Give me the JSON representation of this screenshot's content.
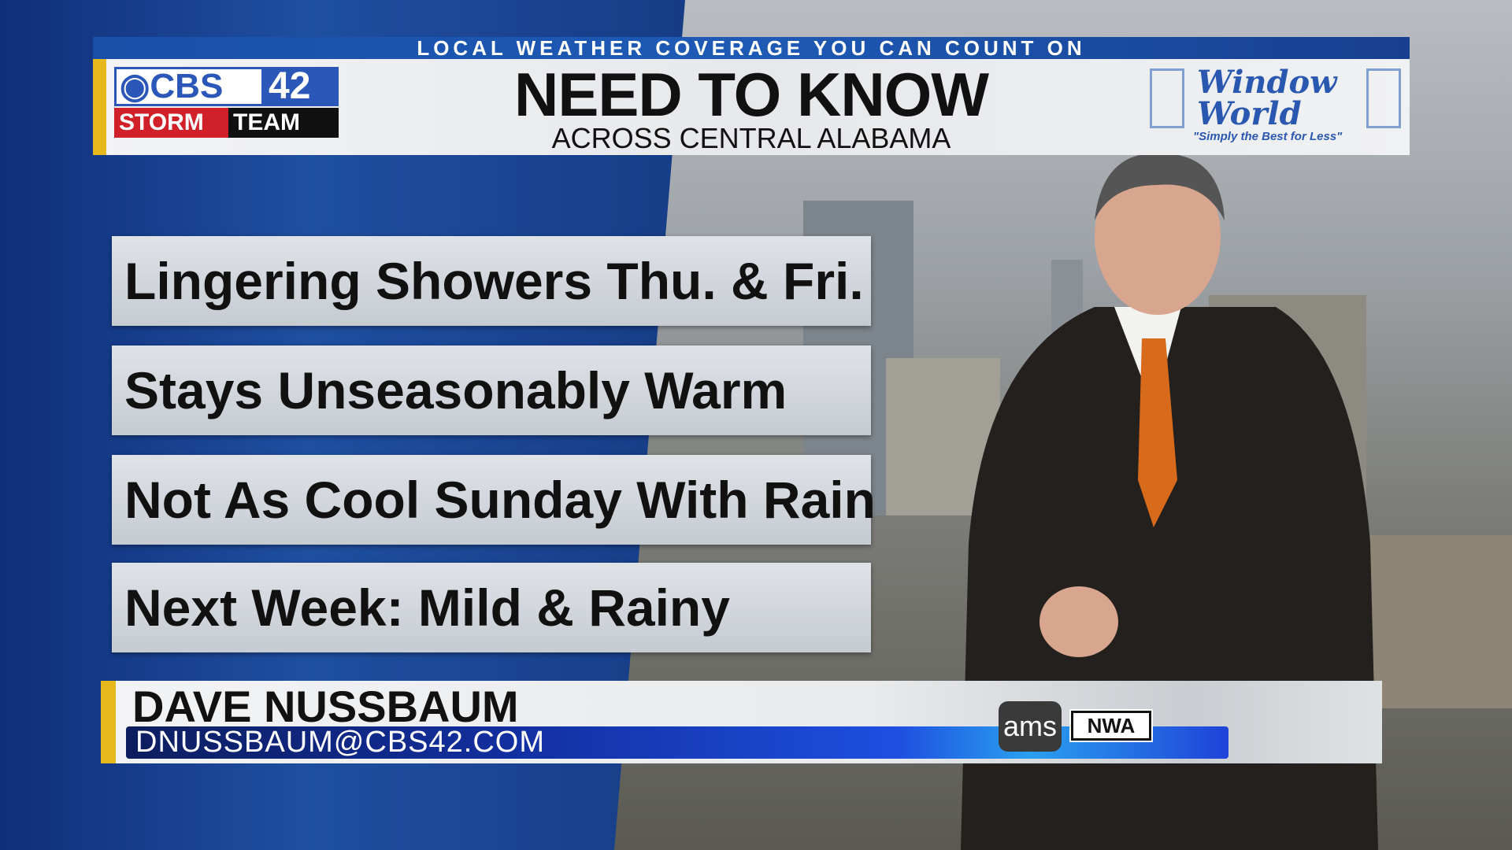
{
  "banner": {
    "tagline": "LOCAL WEATHER COVERAGE YOU CAN COUNT ON"
  },
  "header": {
    "title": "NEED TO KNOW",
    "subtitle": "ACROSS CENTRAL ALABAMA"
  },
  "station_logo": {
    "cbs": "CBS",
    "number": "42",
    "storm": "STORM",
    "team": "TEAM"
  },
  "sponsor": {
    "name": "Window World",
    "tagline": "\"Simply the Best for Less\""
  },
  "bullets": [
    {
      "text": "Lingering Showers Thu. & Fri."
    },
    {
      "text": "Stays Unseasonably Warm"
    },
    {
      "text": "Not As Cool Sunday With Rain"
    },
    {
      "text": "Next Week: Mild & Rainy"
    }
  ],
  "lower_third": {
    "name": "DAVE NUSSBAUM",
    "email": "DNUSSBAUM@CBS42.COM",
    "badges": [
      "ams",
      "NWA"
    ]
  },
  "colors": {
    "accent_yellow": "#e6b81c",
    "brand_blue": "#2a57b8",
    "storm_red": "#d0202a"
  }
}
